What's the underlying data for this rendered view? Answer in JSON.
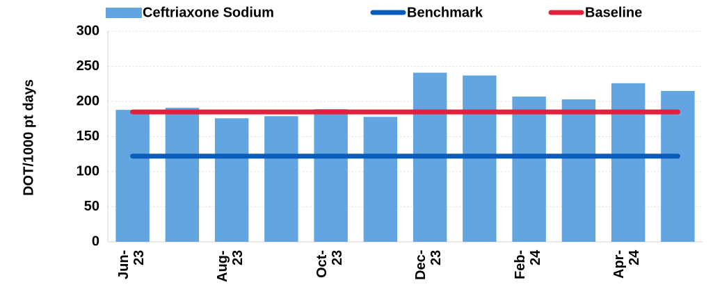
{
  "chart_data": {
    "type": "bar",
    "y_label": "DOT/1000 pt days",
    "categories": [
      "Jun-23",
      null,
      "Aug-23",
      null,
      "Oct-23",
      null,
      "Dec-23",
      null,
      "Feb-24",
      null,
      "Apr-24",
      null
    ],
    "series": [
      {
        "name": "Ceftriaxone Sodium",
        "type": "bar",
        "color": "#63a5e0",
        "values": [
          188,
          191,
          176,
          179,
          189,
          178,
          241,
          237,
          207,
          203,
          226,
          215
        ]
      },
      {
        "name": "Benchmark",
        "type": "line",
        "color": "#0a5cbc",
        "values": [
          122,
          122,
          122,
          122,
          122,
          122,
          122,
          122,
          122,
          122,
          122,
          122
        ]
      },
      {
        "name": "Baseline",
        "type": "line",
        "color": "#e0223c",
        "values": [
          185,
          185,
          185,
          185,
          185,
          185,
          185,
          185,
          185,
          185,
          185,
          185
        ]
      }
    ],
    "ylim": [
      0,
      300
    ],
    "yticks": [
      0,
      50,
      100,
      150,
      200,
      250,
      300
    ],
    "grid": true,
    "legend": "top"
  }
}
